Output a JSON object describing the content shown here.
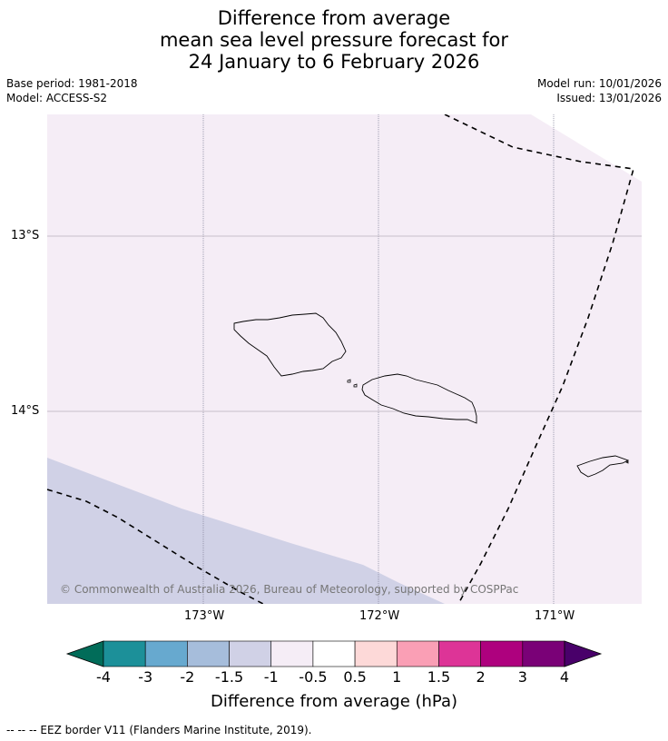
{
  "title": {
    "line1": "Difference from average",
    "line2": "mean sea level pressure forecast for",
    "line3": "24 January to 6 February 2026"
  },
  "meta": {
    "base_period": "Base period: 1981-2018",
    "model": "Model: ACCESS-S2",
    "model_run": "Model run: 10/01/2026",
    "issued": "Issued: 13/01/2026"
  },
  "map": {
    "lat_labels": [
      "13°S",
      "14°S"
    ],
    "lon_labels": [
      "173°W",
      "172°W",
      "171°W"
    ],
    "copyright": "© Commonwealth of Australia 2026, Bureau of Meteorology, supported by COSPPac",
    "colors": {
      "anomaly_m05_to_m1": "#f5edf6",
      "anomaly_m1_to_m15": "#d0d1e6"
    }
  },
  "colorbar": {
    "title": "Difference from average (hPa)",
    "ticks": [
      "-4",
      "-3",
      "-2",
      "-1.5",
      "-1",
      "-0.5",
      "0.5",
      "1",
      "1.5",
      "2",
      "3",
      "4"
    ],
    "colors": [
      "#016c59",
      "#1c9099",
      "#67a9cf",
      "#a6bddb",
      "#d0d1e6",
      "#f5edf6",
      "#ffffff",
      "#fdd9d8",
      "#fa9fb5",
      "#dd3497",
      "#ae017e",
      "#7a0177",
      "#49006a"
    ]
  },
  "eez_legend": "--  --  -- EEZ border V11 (Flanders Marine Institute, 2019)."
}
